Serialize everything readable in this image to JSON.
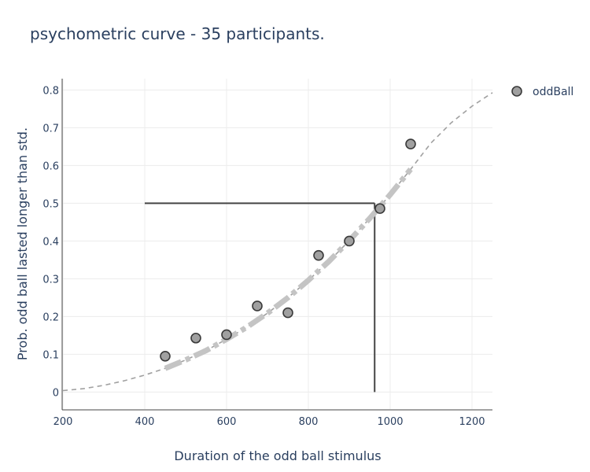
{
  "chart_data": {
    "type": "scatter",
    "title": "psychometric curve - 35 participants.",
    "xlabel": "Duration of the odd ball stimulus",
    "ylabel": "Prob. odd ball lasted longer than std.",
    "xlim": [
      200,
      1250
    ],
    "ylim": [
      -0.045,
      0.83
    ],
    "x_ticks": [
      200,
      400,
      600,
      800,
      1000,
      1200
    ],
    "y_ticks": [
      0,
      0.1,
      0.2,
      0.3,
      0.4,
      0.5,
      0.6,
      0.7,
      0.8
    ],
    "x_tick_labels": [
      "200",
      "400",
      "600",
      "800",
      "1000",
      "1200"
    ],
    "y_tick_labels": [
      "0",
      "0.1",
      "0.2",
      "0.3",
      "0.4",
      "0.5",
      "0.6",
      "0.7",
      "0.8"
    ],
    "grid": true,
    "legend_position": "top-right",
    "series": [
      {
        "name": "oddBall",
        "kind": "markers",
        "color": "#a0a0a0",
        "edge_color": "#3a3a3a",
        "x": [
          450,
          525,
          600,
          675,
          750,
          825,
          900,
          975,
          1050
        ],
        "y": [
          0.095,
          0.143,
          0.152,
          0.228,
          0.21,
          0.362,
          0.4,
          0.486,
          0.657
        ]
      },
      {
        "kind": "fit-extended",
        "style": "dashed",
        "color": "#a0a0a0",
        "x": [
          200,
          250,
          300,
          350,
          400,
          450,
          500,
          550,
          600,
          650,
          700,
          750,
          800,
          850,
          900,
          950,
          1000,
          1050,
          1100,
          1150,
          1200,
          1250
        ],
        "y": [
          0.004,
          0.009,
          0.018,
          0.03,
          0.045,
          0.063,
          0.085,
          0.11,
          0.14,
          0.172,
          0.209,
          0.25,
          0.296,
          0.346,
          0.401,
          0.46,
          0.523,
          0.59,
          0.66,
          0.714,
          0.757,
          0.793
        ]
      },
      {
        "kind": "fit-range",
        "style": "dashdot",
        "color": "#c4c4c4",
        "x": [
          450,
          500,
          550,
          600,
          650,
          700,
          750,
          800,
          850,
          900,
          950,
          1000,
          1050
        ],
        "y": [
          0.063,
          0.085,
          0.11,
          0.14,
          0.172,
          0.209,
          0.25,
          0.296,
          0.346,
          0.401,
          0.46,
          0.523,
          0.59
        ]
      }
    ],
    "reference_lines": {
      "color": "#444444",
      "h_line": {
        "x": [
          400,
          962
        ],
        "y": 0.5
      },
      "v_line": {
        "x": 962,
        "y": [
          0,
          0.5
        ]
      }
    }
  }
}
